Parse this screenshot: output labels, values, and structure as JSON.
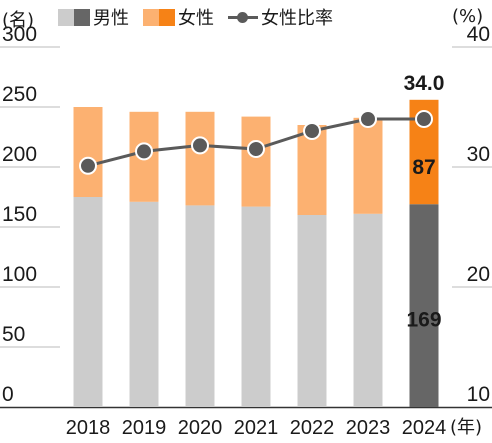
{
  "chart_data": {
    "type": "bar+line",
    "legend": {
      "male_label": "男性",
      "female_label": "女性",
      "ratio_label": "女性比率"
    },
    "left_unit": "(名)",
    "right_unit": "(%)",
    "x_unit": "(年)",
    "categories": [
      "2018",
      "2019",
      "2020",
      "2021",
      "2022",
      "2023",
      "2024"
    ],
    "series": [
      {
        "name": "男性",
        "axis": "left",
        "values": [
          175,
          171,
          168,
          167,
          160,
          161,
          169
        ]
      },
      {
        "name": "女性",
        "axis": "left",
        "values": [
          75,
          75,
          78,
          75,
          75,
          80,
          87
        ]
      },
      {
        "name": "女性比率",
        "axis": "right",
        "type": "line",
        "values": [
          30.1,
          31.3,
          31.8,
          31.5,
          33.0,
          34.0,
          34.0
        ]
      }
    ],
    "left_axis": {
      "ylim": [
        0,
        300
      ],
      "ticks": [
        "0",
        "50",
        "100",
        "150",
        "200",
        "250",
        "300"
      ]
    },
    "right_axis": {
      "ylim": [
        10,
        40
      ],
      "ticks": [
        "10",
        "20",
        "30",
        "40"
      ]
    },
    "highlight": {
      "category": "2024",
      "male_label": "169",
      "female_label": "87",
      "ratio_label": "34.0"
    },
    "colors": {
      "male": "#cccccc",
      "female": "#fcb171",
      "male_highlight": "#666666",
      "female_highlight": "#f68216",
      "line": "#5a5a5a",
      "marker_fill": "#5a5a5a",
      "marker_stroke": "#ffffff",
      "grid": "#bbbbbb",
      "axis": "#333333",
      "text": "#1a1a1a"
    }
  }
}
